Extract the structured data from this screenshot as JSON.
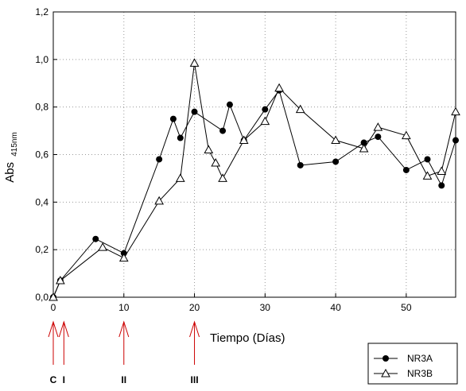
{
  "chart_data": {
    "type": "line",
    "title": "",
    "xlabel": "Tiempo (Días)",
    "ylabel": "Abs",
    "ylabel_sub": "415nm",
    "xlim": [
      0,
      57
    ],
    "ylim": [
      0,
      1.2
    ],
    "xticks": [
      0,
      10,
      20,
      30,
      40,
      50
    ],
    "xtick_labels": [
      "0",
      "10",
      "20",
      "30",
      "40",
      "50"
    ],
    "yticks": [
      0,
      0.2,
      0.4,
      0.6,
      0.8,
      1.0,
      1.2
    ],
    "ytick_labels": [
      "0,0",
      "0,2",
      "0,4",
      "0,6",
      "0,8",
      "1,0",
      "1,2"
    ],
    "grid": true,
    "legend_position": "bottom-right",
    "series": [
      {
        "name": "NR3A",
        "marker": "filled-circle",
        "x": [
          0,
          1,
          6,
          10,
          15,
          17,
          18,
          20,
          24,
          25,
          27,
          30,
          32,
          35,
          40,
          44,
          46,
          50,
          53,
          55,
          57
        ],
        "y": [
          0.0,
          0.07,
          0.245,
          0.185,
          0.58,
          0.75,
          0.67,
          0.78,
          0.7,
          0.81,
          0.66,
          0.79,
          0.87,
          0.555,
          0.57,
          0.65,
          0.675,
          0.535,
          0.58,
          0.47,
          0.66
        ]
      },
      {
        "name": "NR3B",
        "marker": "open-triangle",
        "x": [
          0,
          1,
          7,
          10,
          15,
          18,
          20,
          22,
          23,
          24,
          27,
          30,
          32,
          35,
          40,
          44,
          46,
          50,
          53,
          55,
          57
        ],
        "y": [
          0.0,
          0.07,
          0.21,
          0.165,
          0.405,
          0.5,
          0.985,
          0.62,
          0.565,
          0.5,
          0.66,
          0.74,
          0.88,
          0.79,
          0.66,
          0.625,
          0.715,
          0.68,
          0.51,
          0.53,
          0.78
        ]
      }
    ],
    "annotations": [
      {
        "label": "C",
        "x": 0
      },
      {
        "label": "I",
        "x": 1.5
      },
      {
        "label": "II",
        "x": 10
      },
      {
        "label": "III",
        "x": 20
      }
    ],
    "annotation_color": "#cc0000"
  }
}
